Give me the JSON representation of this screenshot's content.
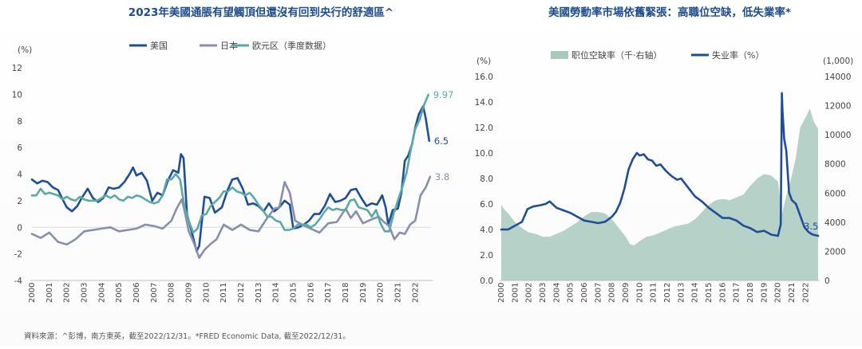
{
  "footnote": "資料來源：^彭博，南方東英，截至2022/12/31。*FRED Economic Data, 截至2022/12/31。",
  "chart_data": [
    {
      "type": "line",
      "title": "2023年美國通脹有望觸頂但還沒有回到央行的舒適區^",
      "ylabel": "(%)",
      "ylim": [
        -4,
        12
      ],
      "yticks": [
        -4,
        -2,
        0,
        2,
        4,
        6,
        8,
        10,
        12
      ],
      "xlim": [
        2000,
        2022.9
      ],
      "xticks": [
        "2000",
        "2001",
        "2002",
        "2003",
        "2004",
        "2005",
        "2006",
        "2007",
        "2008",
        "2009",
        "2010",
        "2011",
        "2012",
        "2013",
        "2014",
        "2015",
        "2016",
        "2017",
        "2018",
        "2019",
        "2020",
        "2021",
        "2022"
      ],
      "legend_position": "top",
      "series": [
        {
          "name": "美国",
          "color": "#1f4e96",
          "end_label": "6.5",
          "x": [
            2000,
            2000.3,
            2000.6,
            2000.9,
            2001.2,
            2001.5,
            2001.8,
            2002.0,
            2002.3,
            2002.6,
            2002.9,
            2003.2,
            2003.5,
            2003.8,
            2004.1,
            2004.4,
            2004.7,
            2005.0,
            2005.3,
            2005.6,
            2005.8,
            2006.0,
            2006.3,
            2006.6,
            2006.9,
            2007.2,
            2007.5,
            2007.8,
            2008.1,
            2008.4,
            2008.55,
            2008.7,
            2008.9,
            2009.2,
            2009.45,
            2009.6,
            2009.9,
            2010.2,
            2010.5,
            2010.9,
            2011.2,
            2011.5,
            2011.8,
            2012.1,
            2012.4,
            2012.7,
            2013.0,
            2013.3,
            2013.6,
            2013.9,
            2014.2,
            2014.5,
            2014.8,
            2015.0,
            2015.3,
            2015.6,
            2015.9,
            2016.2,
            2016.5,
            2016.8,
            2017.1,
            2017.4,
            2017.7,
            2018.0,
            2018.3,
            2018.6,
            2018.9,
            2019.2,
            2019.5,
            2019.8,
            2020.1,
            2020.3,
            2020.45,
            2020.7,
            2021.0,
            2021.2,
            2021.4,
            2021.6,
            2021.8,
            2022.0,
            2022.2,
            2022.45,
            2022.6,
            2022.8
          ],
          "values": [
            3.6,
            3.3,
            3.5,
            3.4,
            3.0,
            2.8,
            2.0,
            1.5,
            1.2,
            1.6,
            2.3,
            2.9,
            2.2,
            1.9,
            2.2,
            3.0,
            2.9,
            3.0,
            3.4,
            4.0,
            4.5,
            3.9,
            4.1,
            3.5,
            2.0,
            2.6,
            2.4,
            3.5,
            4.3,
            4.1,
            5.5,
            5.2,
            1.0,
            -0.5,
            -1.8,
            -1.4,
            2.3,
            2.2,
            1.1,
            1.5,
            2.7,
            3.6,
            3.7,
            2.9,
            1.7,
            1.8,
            1.6,
            1.2,
            1.8,
            1.2,
            1.5,
            2.0,
            1.7,
            -0.1,
            0.0,
            0.2,
            0.5,
            1.0,
            1.0,
            1.6,
            2.5,
            1.9,
            2.0,
            2.2,
            2.8,
            2.9,
            2.2,
            1.6,
            1.8,
            1.7,
            2.4,
            1.5,
            0.2,
            1.3,
            1.4,
            2.6,
            5.0,
            5.4,
            6.2,
            7.5,
            8.5,
            9.1,
            8.2,
            6.5
          ]
        },
        {
          "name": "日本",
          "color": "#8790a8",
          "end_label": "3.8",
          "x": [
            2000,
            2000.5,
            2001.0,
            2001.5,
            2002.0,
            2002.5,
            2003.0,
            2003.5,
            2004.0,
            2004.5,
            2005.0,
            2005.5,
            2006.0,
            2006.5,
            2007.0,
            2007.5,
            2008.0,
            2008.3,
            2008.6,
            2008.8,
            2009.0,
            2009.3,
            2009.6,
            2009.9,
            2010.3,
            2010.6,
            2011.0,
            2011.5,
            2012.0,
            2012.5,
            2013.0,
            2013.5,
            2013.9,
            2014.2,
            2014.5,
            2014.8,
            2015.1,
            2015.5,
            2016.0,
            2016.5,
            2017.0,
            2017.5,
            2018.0,
            2018.3,
            2018.6,
            2019.0,
            2019.5,
            2019.9,
            2020.2,
            2020.5,
            2020.8,
            2021.1,
            2021.4,
            2021.7,
            2022.0,
            2022.3,
            2022.6,
            2022.85
          ],
          "values": [
            -0.5,
            -0.8,
            -0.4,
            -1.1,
            -1.3,
            -0.9,
            -0.3,
            -0.2,
            -0.1,
            0.0,
            -0.3,
            -0.2,
            -0.1,
            0.2,
            0.1,
            -0.1,
            0.5,
            1.4,
            2.1,
            1.0,
            -0.3,
            -1.2,
            -2.3,
            -1.7,
            -1.2,
            -0.9,
            0.2,
            -0.2,
            0.2,
            -0.2,
            -0.3,
            0.7,
            1.4,
            1.5,
            3.4,
            2.6,
            0.5,
            0.2,
            -0.1,
            -0.4,
            0.3,
            0.4,
            1.4,
            0.7,
            1.2,
            0.3,
            0.6,
            0.8,
            0.4,
            0.1,
            -0.9,
            -0.4,
            -0.5,
            0.2,
            0.5,
            2.4,
            3.0,
            3.8
          ]
        },
        {
          "name": "欧元区（季度数据）",
          "color": "#5aa9a6",
          "end_label": "9.97",
          "x": [
            2000,
            2000.25,
            2000.5,
            2000.75,
            2001.0,
            2001.25,
            2001.5,
            2001.75,
            2002.0,
            2002.25,
            2002.5,
            2002.75,
            2003.0,
            2003.25,
            2003.5,
            2003.75,
            2004.0,
            2004.25,
            2004.5,
            2004.75,
            2005.0,
            2005.25,
            2005.5,
            2005.75,
            2006.0,
            2006.25,
            2006.5,
            2006.75,
            2007.0,
            2007.25,
            2007.5,
            2007.75,
            2008.0,
            2008.25,
            2008.5,
            2008.75,
            2009.0,
            2009.25,
            2009.5,
            2009.75,
            2010.0,
            2010.25,
            2010.5,
            2010.75,
            2011.0,
            2011.25,
            2011.5,
            2011.75,
            2012.0,
            2012.25,
            2012.5,
            2012.75,
            2013.0,
            2013.25,
            2013.5,
            2013.75,
            2014.0,
            2014.25,
            2014.5,
            2014.75,
            2015.0,
            2015.25,
            2015.5,
            2015.75,
            2016.0,
            2016.25,
            2016.5,
            2016.75,
            2017.0,
            2017.25,
            2017.5,
            2017.75,
            2018.0,
            2018.25,
            2018.5,
            2018.75,
            2019.0,
            2019.25,
            2019.5,
            2019.75,
            2020.0,
            2020.25,
            2020.5,
            2020.75,
            2021.0,
            2021.25,
            2021.5,
            2021.75,
            2022.0,
            2022.25,
            2022.5,
            2022.75
          ],
          "values": [
            2.4,
            2.4,
            2.9,
            2.5,
            2.6,
            2.5,
            2.4,
            2.1,
            2.3,
            2.1,
            2.0,
            2.3,
            2.1,
            2.0,
            2.0,
            2.0,
            2.2,
            2.4,
            2.2,
            2.4,
            2.1,
            2.0,
            2.3,
            2.2,
            2.4,
            2.3,
            2.1,
            1.9,
            1.8,
            1.9,
            2.4,
            3.6,
            3.6,
            4.0,
            3.6,
            1.6,
            0.5,
            -0.4,
            -0.1,
            0.9,
            1.0,
            1.6,
            1.9,
            2.2,
            2.7,
            2.7,
            3.0,
            2.7,
            2.6,
            2.4,
            2.6,
            2.2,
            1.7,
            1.3,
            0.8,
            0.8,
            0.5,
            0.4,
            -0.2,
            -0.2,
            -0.1,
            0.2,
            0.2,
            0.2,
            0.0,
            0.2,
            0.6,
            1.1,
            1.5,
            1.3,
            1.4,
            1.3,
            1.3,
            2.0,
            2.1,
            1.5,
            1.4,
            1.3,
            0.8,
            1.3,
            0.3,
            -0.3,
            -0.3,
            1.0,
            2.0,
            3.0,
            4.1,
            5.9,
            7.4,
            8.1,
            9.2,
            9.97
          ]
        }
      ]
    },
    {
      "type": "line",
      "title": "美國勞動率市場依舊緊張：高職位空缺，低失業率*",
      "ylabel": "(%)",
      "ylabel_right": "(1,000)",
      "ylim": [
        0,
        16
      ],
      "yticks": [
        "0.0",
        "2.0",
        "4.0",
        "6.0",
        "8.0",
        "10.0",
        "12.0",
        "14.0",
        "16.0"
      ],
      "ylim_right": [
        0,
        14000
      ],
      "yticks_right": [
        "0",
        "2000",
        "4000",
        "6000",
        "8000",
        "10000",
        "12000",
        "14000"
      ],
      "xlim": [
        2000,
        2022.9
      ],
      "xticks": [
        "2000",
        "2001",
        "2002",
        "2003",
        "2004",
        "2005",
        "2006",
        "2007",
        "2008",
        "2009",
        "2010",
        "2011",
        "2012",
        "2013",
        "2014",
        "2015",
        "2016",
        "2017",
        "2018",
        "2019",
        "2020",
        "2021",
        "2022"
      ],
      "legend_position": "top",
      "series": [
        {
          "name": "职位空缺率（千·右轴）",
          "type": "area",
          "axis": "right",
          "color": "#a9c9bd",
          "x": [
            2000,
            2000.2,
            2000.5,
            2001.0,
            2001.5,
            2002.0,
            2002.5,
            2003.0,
            2003.5,
            2004.0,
            2004.5,
            2005.0,
            2005.5,
            2006.0,
            2006.5,
            2007.0,
            2007.5,
            2008.0,
            2008.5,
            2009.0,
            2009.3,
            2009.6,
            2010.0,
            2010.5,
            2011.0,
            2011.5,
            2012.0,
            2012.5,
            2013.0,
            2013.5,
            2014.0,
            2014.5,
            2015.0,
            2015.5,
            2016.0,
            2016.5,
            2017.0,
            2017.5,
            2018.0,
            2018.5,
            2019.0,
            2019.5,
            2020.0,
            2020.3,
            2020.6,
            2021.0,
            2021.3,
            2021.6,
            2022.0,
            2022.3,
            2022.6,
            2022.9
          ],
          "values": [
            5200,
            4900,
            4600,
            4000,
            3600,
            3300,
            3200,
            3000,
            3000,
            3200,
            3400,
            3700,
            4000,
            4400,
            4700,
            4700,
            4600,
            4200,
            3600,
            3000,
            2500,
            2400,
            2700,
            3000,
            3100,
            3300,
            3500,
            3700,
            3800,
            3900,
            4200,
            4700,
            5200,
            5500,
            5600,
            5500,
            5700,
            5900,
            6500,
            7000,
            7300,
            7200,
            6800,
            4600,
            5800,
            7200,
            8500,
            10500,
            11200,
            11800,
            10900,
            10400
          ]
        },
        {
          "name": "失业率（%）",
          "type": "line",
          "axis": "left",
          "color": "#1f4e96",
          "end_label": "3.5",
          "x": [
            2000,
            2000.5,
            2001.0,
            2001.5,
            2001.9,
            2002.3,
            2002.8,
            2003.2,
            2003.5,
            2004.0,
            2004.5,
            2005.0,
            2005.5,
            2006.0,
            2006.5,
            2007.0,
            2007.5,
            2008.0,
            2008.3,
            2008.6,
            2008.9,
            2009.2,
            2009.5,
            2009.8,
            2010.0,
            2010.3,
            2010.6,
            2010.9,
            2011.2,
            2011.5,
            2011.9,
            2012.3,
            2012.7,
            2013.0,
            2013.5,
            2014.0,
            2014.5,
            2015.0,
            2015.5,
            2016.0,
            2016.5,
            2017.0,
            2017.5,
            2018.0,
            2018.5,
            2019.0,
            2019.5,
            2020.0,
            2020.2,
            2020.28,
            2020.33,
            2020.45,
            2020.6,
            2020.8,
            2021.0,
            2021.3,
            2021.6,
            2021.9,
            2022.2,
            2022.5,
            2022.9
          ],
          "values": [
            4.0,
            4.0,
            4.3,
            4.6,
            5.6,
            5.8,
            5.9,
            6.0,
            6.2,
            5.7,
            5.5,
            5.3,
            5.0,
            4.7,
            4.6,
            4.5,
            4.6,
            5.0,
            5.4,
            6.1,
            7.2,
            8.7,
            9.5,
            10.0,
            9.8,
            9.9,
            9.5,
            9.4,
            9.0,
            9.1,
            8.6,
            8.2,
            7.9,
            8.0,
            7.3,
            6.6,
            6.2,
            5.7,
            5.3,
            4.9,
            4.9,
            4.7,
            4.3,
            4.1,
            3.8,
            3.9,
            3.6,
            3.5,
            4.4,
            14.7,
            13.3,
            11.1,
            10.2,
            6.9,
            6.3,
            6.0,
            5.1,
            4.2,
            3.8,
            3.6,
            3.5
          ]
        }
      ]
    }
  ]
}
